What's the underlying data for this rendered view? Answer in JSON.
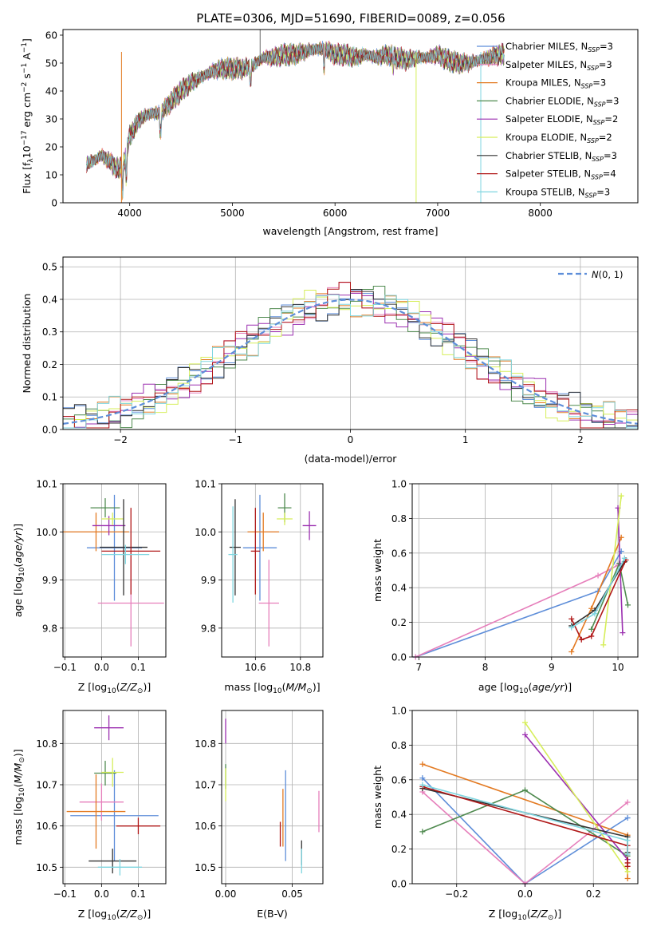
{
  "figure_title": "PLATE=0306, MJD=51690, FIBERID=0089, z=0.056",
  "chart_data": [
    {
      "id": "spectrum",
      "type": "line",
      "xlabel": "wavelength [Angstrom, rest frame]",
      "ylabel": "Flux [f$_\\lambda$10$^{-17}$ erg cm$^{-2}$ s$^{-1}$ A$^{-1}$]",
      "ylabel_display": "Flux [fλ10⁻¹⁷ erg cm⁻² s⁻¹ A⁻¹]",
      "xlim": [
        3350,
        8950
      ],
      "ylim": [
        0,
        62
      ],
      "xticks": [
        "4000",
        "5000",
        "6000",
        "7000",
        "8000"
      ],
      "yticks": [
        "0",
        "10",
        "20",
        "30",
        "40",
        "50",
        "60"
      ],
      "grid": false,
      "legend_location": "upper right",
      "spectrum_trend": {
        "x": [
          3580,
          3650,
          3720,
          3800,
          3850,
          3900,
          3930,
          3970,
          4000,
          4100,
          4200,
          4300,
          4400,
          4500,
          4600,
          4700,
          4800,
          4900,
          5000,
          5100,
          5200,
          5300,
          5400,
          5500,
          5600,
          5700,
          5800,
          5900,
          6000,
          6100,
          6200,
          6300,
          6400,
          6500,
          6600,
          6700,
          6800,
          6900,
          7000,
          7100,
          7200,
          7300,
          7400,
          7500,
          7600
        ],
        "y": [
          14,
          15,
          17,
          15,
          13,
          12,
          13,
          18,
          24,
          30,
          32,
          32,
          36,
          40,
          43,
          45,
          47,
          48,
          48,
          48,
          49,
          52,
          52,
          53,
          53,
          54,
          55,
          55,
          53,
          53,
          52,
          53,
          52,
          53,
          52,
          51,
          52,
          52,
          53,
          51,
          50,
          50,
          51,
          52,
          53
        ]
      },
      "gaps": [
        3920,
        6790,
        7420
      ],
      "series": [
        {
          "name": "Chabrier MILES, N$_{SSP}$=3",
          "label_display": "Chabrier MILES, N",
          "sub": "SSP",
          "suffix": "=3",
          "color": "#5e8ed9"
        },
        {
          "name": "Salpeter MILES, N$_{SSP}$=3",
          "label_display": "Salpeter MILES, N",
          "sub": "SSP",
          "suffix": "=3",
          "color": "#e67fbb"
        },
        {
          "name": "Kroupa MILES, N$_{SSP}$=3",
          "label_display": "Kroupa MILES, N",
          "sub": "SSP",
          "suffix": "=3",
          "color": "#e37a22"
        },
        {
          "name": "Chabrier ELODIE, N$_{SSP}$=3",
          "label_display": "Chabrier ELODIE, N",
          "sub": "SSP",
          "suffix": "=3",
          "color": "#4f8a4f"
        },
        {
          "name": "Salpeter ELODIE, N$_{SSP}$=2",
          "label_display": "Salpeter ELODIE, N",
          "sub": "SSP",
          "suffix": "=2",
          "color": "#9b2fb0"
        },
        {
          "name": "Kroupa ELODIE, N$_{SSP}$=2",
          "label_display": "Kroupa ELODIE, N",
          "sub": "SSP",
          "suffix": "=2",
          "color": "#d6ee5a"
        },
        {
          "name": "Chabrier STELIB, N$_{SSP}$=3",
          "label_display": "Chabrier STELIB, N",
          "sub": "SSP",
          "suffix": "=3",
          "color": "#333333"
        },
        {
          "name": "Salpeter STELIB, N$_{SSP}$=4",
          "label_display": "Salpeter STELIB, N",
          "sub": "SSP",
          "suffix": "=4",
          "color": "#b01818"
        },
        {
          "name": "Kroupa STELIB, N$_{SSP}$=3",
          "label_display": "Kroupa STELIB, N",
          "sub": "SSP",
          "suffix": "=3",
          "color": "#7fd6e0"
        }
      ]
    },
    {
      "id": "residuals",
      "type": "line",
      "xlabel": "(data-model)/error",
      "ylabel": "Normed distribution",
      "xlim": [
        -2.5,
        2.5
      ],
      "ylim": [
        0,
        0.53
      ],
      "xticks": [
        -2,
        -1,
        0,
        1,
        2
      ],
      "xtick_labels": [
        "−2",
        "−1",
        "0",
        "1",
        "2"
      ],
      "yticks": [
        0,
        0.1,
        0.2,
        0.3,
        0.4,
        0.5
      ],
      "ytick_labels": [
        "0.0",
        "0.1",
        "0.2",
        "0.3",
        "0.4",
        "0.5"
      ],
      "grid": true,
      "legend_location": "upper right",
      "legend_label": "N(0,1)",
      "reference_curve": {
        "name": "N(0,1)",
        "mean": 0,
        "sigma": 1,
        "color": "#5e8ed9",
        "style": "dashed"
      },
      "bin_width": 0.1,
      "histograms_note": "step histograms for the nine fits, each approximately following N(0,1)"
    },
    {
      "id": "age-vs-Z",
      "type": "scatter",
      "xlabel": "Z [log$_{10}$(Z/Z$_\\odot$)]",
      "ylabel": "age  [log$_{10}$(age/yr)]",
      "xlim": [
        -0.105,
        0.175
      ],
      "ylim": [
        9.74,
        10.1
      ],
      "xticks": [
        -0.1,
        0.0,
        0.1
      ],
      "xtick_labels": [
        "−0.1",
        "0.0",
        "0.1"
      ],
      "yticks": [
        9.8,
        9.9,
        10.0,
        10.1
      ],
      "ytick_labels": [
        "9.8",
        "9.9",
        "10.0",
        "10.1"
      ],
      "grid": true,
      "points": [
        {
          "x": 0.035,
          "y": 9.967,
          "xerr": 0.075,
          "yerr": 0.11,
          "color": "#5e8ed9"
        },
        {
          "x": 0.08,
          "y": 9.852,
          "xerr": 0.09,
          "yerr": 0.09,
          "color": "#e67fbb"
        },
        {
          "x": -0.015,
          "y": 10.0,
          "xerr": 0.09,
          "yerr": 0.04,
          "color": "#e37a22"
        },
        {
          "x": 0.01,
          "y": 10.05,
          "xerr": 0.04,
          "yerr": 0.02,
          "color": "#4f8a4f"
        },
        {
          "x": 0.02,
          "y": 10.013,
          "xerr": 0.045,
          "yerr": 0.02,
          "color": "#9b2fb0"
        },
        {
          "x": 0.03,
          "y": 10.027,
          "xerr": 0.03,
          "yerr": 0.013,
          "color": "#d6ee5a"
        },
        {
          "x": 0.06,
          "y": 9.968,
          "xerr": 0.065,
          "yerr": 0.1,
          "color": "#333333"
        },
        {
          "x": 0.08,
          "y": 9.96,
          "xerr": 0.08,
          "yerr": 0.09,
          "color": "#b01818"
        },
        {
          "x": 0.065,
          "y": 9.953,
          "xerr": 0.065,
          "yerr": 0.02,
          "color": "#7fd6e0"
        }
      ]
    },
    {
      "id": "age-vs-mass",
      "type": "scatter",
      "xlabel": "mass [log$_{10}$(M/M$_\\odot$)]",
      "ylabel": "",
      "xlim": [
        10.45,
        10.9
      ],
      "ylim": [
        9.74,
        10.1
      ],
      "xticks": [
        10.6,
        10.8
      ],
      "xtick_labels": [
        "10.6",
        "10.8"
      ],
      "yticks": [
        9.8,
        9.9,
        10.0,
        10.1
      ],
      "ytick_labels": [
        "9.8",
        "9.9",
        "10.0",
        "10.1"
      ],
      "grid": true,
      "points": [
        {
          "x": 10.62,
          "y": 9.967,
          "xerr": 0.075,
          "yerr": 0.11,
          "color": "#5e8ed9"
        },
        {
          "x": 10.66,
          "y": 9.852,
          "xerr": 0.045,
          "yerr": 0.09,
          "color": "#e67fbb"
        },
        {
          "x": 10.635,
          "y": 10.0,
          "xerr": 0.07,
          "yerr": 0.04,
          "color": "#e37a22"
        },
        {
          "x": 10.73,
          "y": 10.05,
          "xerr": 0.03,
          "yerr": 0.03,
          "color": "#4f8a4f"
        },
        {
          "x": 10.84,
          "y": 10.013,
          "xerr": 0.03,
          "yerr": 0.03,
          "color": "#9b2fb0"
        },
        {
          "x": 10.73,
          "y": 10.027,
          "xerr": 0.035,
          "yerr": 0.013,
          "color": "#d6ee5a"
        },
        {
          "x": 10.51,
          "y": 9.968,
          "xerr": 0.025,
          "yerr": 0.1,
          "color": "#333333"
        },
        {
          "x": 10.6,
          "y": 9.96,
          "xerr": 0.02,
          "yerr": 0.09,
          "color": "#b01818"
        },
        {
          "x": 10.5,
          "y": 9.953,
          "xerr": 0.02,
          "yerr": 0.1,
          "color": "#7fd6e0"
        }
      ]
    },
    {
      "id": "mass-weight-vs-age",
      "type": "line",
      "xlabel": "age  [log$_{10}$(age/yr)]",
      "ylabel": "mass weight",
      "xlim": [
        6.9,
        10.3
      ],
      "ylim": [
        0,
        1
      ],
      "xticks": [
        7,
        8,
        9,
        10
      ],
      "xtick_labels": [
        "7",
        "8",
        "9",
        "10"
      ],
      "yticks": [
        0,
        0.2,
        0.4,
        0.6,
        0.8,
        1.0
      ],
      "ytick_labels": [
        "0.0",
        "0.2",
        "0.4",
        "0.6",
        "0.8",
        "1.0"
      ],
      "grid": true,
      "series": [
        {
          "color": "#5e8ed9",
          "x": [
            6.95,
            9.7,
            10.05
          ],
          "y": [
            0.0,
            0.38,
            0.61
          ]
        },
        {
          "color": "#e67fbb",
          "x": [
            6.95,
            9.7,
            10.0
          ],
          "y": [
            0.0,
            0.47,
            0.53
          ]
        },
        {
          "color": "#e37a22",
          "x": [
            9.3,
            9.6,
            10.05
          ],
          "y": [
            0.03,
            0.28,
            0.69
          ]
        },
        {
          "color": "#4f8a4f",
          "x": [
            9.6,
            10.02,
            10.15
          ],
          "y": [
            0.16,
            0.54,
            0.3
          ]
        },
        {
          "color": "#9b2fb0",
          "x": [
            10.0,
            10.07
          ],
          "y": [
            0.86,
            0.14
          ]
        },
        {
          "color": "#d6ee5a",
          "x": [
            9.78,
            10.05
          ],
          "y": [
            0.07,
            0.93
          ]
        },
        {
          "color": "#333333",
          "x": [
            9.3,
            9.65,
            10.1
          ],
          "y": [
            0.18,
            0.27,
            0.55
          ]
        },
        {
          "color": "#b01818",
          "x": [
            9.3,
            9.45,
            9.6,
            10.12
          ],
          "y": [
            0.22,
            0.1,
            0.12,
            0.56
          ]
        },
        {
          "color": "#7fd6e0",
          "x": [
            9.3,
            9.65,
            10.1
          ],
          "y": [
            0.17,
            0.25,
            0.57
          ]
        }
      ]
    },
    {
      "id": "mass-vs-Z",
      "type": "scatter",
      "xlabel": "Z [log$_{10}$(Z/Z$_\\odot$)]",
      "ylabel": "mass [log$_{10}$(M/M$_\\odot$)]",
      "xlim": [
        -0.105,
        0.175
      ],
      "ylim": [
        10.46,
        10.88
      ],
      "xticks": [
        -0.1,
        0.0,
        0.1
      ],
      "xtick_labels": [
        "−0.1",
        "0.0",
        "0.1"
      ],
      "yticks": [
        10.5,
        10.6,
        10.7,
        10.8
      ],
      "ytick_labels": [
        "10.5",
        "10.6",
        "10.7",
        "10.8"
      ],
      "grid": true,
      "points": [
        {
          "x": 0.035,
          "y": 10.625,
          "xerr": 0.12,
          "yerr": 0.11,
          "color": "#5e8ed9"
        },
        {
          "x": 0.0,
          "y": 10.658,
          "xerr": 0.06,
          "yerr": 0.045,
          "color": "#e67fbb"
        },
        {
          "x": -0.015,
          "y": 10.635,
          "xerr": 0.08,
          "yerr": 0.09,
          "color": "#e37a22"
        },
        {
          "x": 0.01,
          "y": 10.728,
          "xerr": 0.03,
          "yerr": 0.03,
          "color": "#4f8a4f"
        },
        {
          "x": 0.02,
          "y": 10.838,
          "xerr": 0.04,
          "yerr": 0.03,
          "color": "#9b2fb0"
        },
        {
          "x": 0.03,
          "y": 10.73,
          "xerr": 0.03,
          "yerr": 0.035,
          "color": "#d6ee5a"
        },
        {
          "x": 0.03,
          "y": 10.515,
          "xerr": 0.065,
          "yerr": 0.03,
          "color": "#333333"
        },
        {
          "x": 0.1,
          "y": 10.6,
          "xerr": 0.06,
          "yerr": 0.02,
          "color": "#b01818"
        },
        {
          "x": 0.05,
          "y": 10.5,
          "xerr": 0.06,
          "yerr": 0.02,
          "color": "#7fd6e0"
        }
      ]
    },
    {
      "id": "mass-vs-ebv",
      "type": "scatter",
      "xlabel": "E(B-V)",
      "ylabel": "",
      "xlim": [
        -0.003,
        0.073
      ],
      "ylim": [
        10.46,
        10.88
      ],
      "xticks": [
        0.0,
        0.05
      ],
      "xtick_labels": [
        "0.00",
        "0.05"
      ],
      "yticks": [
        10.5,
        10.6,
        10.7,
        10.8
      ],
      "ytick_labels": [
        "10.5",
        "10.6",
        "10.7",
        "10.8"
      ],
      "grid": true,
      "points": [
        {
          "x": 0.045,
          "y": 10.625,
          "xerr": 0,
          "yerr": 0.11,
          "color": "#5e8ed9"
        },
        {
          "x": 0.07,
          "y": 10.635,
          "xerr": 0,
          "yerr": 0.05,
          "color": "#e67fbb"
        },
        {
          "x": 0.043,
          "y": 10.62,
          "xerr": 0,
          "yerr": 0.07,
          "color": "#e37a22"
        },
        {
          "x": 0.0,
          "y": 10.72,
          "xerr": 0,
          "yerr": 0.03,
          "color": "#4f8a4f"
        },
        {
          "x": 0.0,
          "y": 10.83,
          "xerr": 0,
          "yerr": 0.03,
          "color": "#9b2fb0"
        },
        {
          "x": 0.0,
          "y": 10.7,
          "xerr": 0,
          "yerr": 0.04,
          "color": "#d6ee5a"
        },
        {
          "x": 0.057,
          "y": 10.535,
          "xerr": 0,
          "yerr": 0.03,
          "color": "#333333"
        },
        {
          "x": 0.041,
          "y": 10.58,
          "xerr": 0,
          "yerr": 0.03,
          "color": "#b01818"
        },
        {
          "x": 0.057,
          "y": 10.515,
          "xerr": 0,
          "yerr": 0.03,
          "color": "#7fd6e0"
        }
      ]
    },
    {
      "id": "mass-weight-vs-Z",
      "type": "line",
      "xlabel": "Z [log$_{10}$(Z/Z$_\\odot$)]",
      "ylabel": "mass weight",
      "xlim": [
        -0.33,
        0.33
      ],
      "ylim": [
        0,
        1
      ],
      "xticks": [
        -0.2,
        0.0,
        0.2
      ],
      "xtick_labels": [
        "−0.2",
        "0.0",
        "0.2"
      ],
      "yticks": [
        0,
        0.2,
        0.4,
        0.6,
        0.8,
        1.0
      ],
      "ytick_labels": [
        "0.0",
        "0.2",
        "0.4",
        "0.6",
        "0.8",
        "1.0"
      ],
      "grid": true,
      "series": [
        {
          "color": "#5e8ed9",
          "x": [
            -0.3,
            0.0,
            0.3
          ],
          "y": [
            0.61,
            0.0,
            0.38
          ]
        },
        {
          "color": "#e67fbb",
          "x": [
            -0.3,
            0.0,
            0.3
          ],
          "y": [
            0.53,
            0.0,
            0.47
          ]
        },
        {
          "color": "#e37a22",
          "x": [
            -0.3,
            0.3,
            0.3
          ],
          "y": [
            0.69,
            0.28,
            0.03
          ]
        },
        {
          "color": "#4f8a4f",
          "x": [
            -0.3,
            0.0,
            0.3
          ],
          "y": [
            0.3,
            0.54,
            0.16
          ]
        },
        {
          "color": "#9b2fb0",
          "x": [
            0.0,
            0.3
          ],
          "y": [
            0.86,
            0.14
          ]
        },
        {
          "color": "#d6ee5a",
          "x": [
            0.0,
            0.3
          ],
          "y": [
            0.93,
            0.07
          ]
        },
        {
          "color": "#333333",
          "x": [
            -0.3,
            0.3,
            0.3
          ],
          "y": [
            0.55,
            0.27,
            0.18
          ]
        },
        {
          "color": "#b01818",
          "x": [
            -0.3,
            0.3,
            0.3,
            0.3
          ],
          "y": [
            0.56,
            0.22,
            0.12,
            0.1
          ]
        },
        {
          "color": "#7fd6e0",
          "x": [
            -0.3,
            0.3,
            0.3
          ],
          "y": [
            0.57,
            0.25,
            0.17
          ]
        }
      ]
    }
  ]
}
